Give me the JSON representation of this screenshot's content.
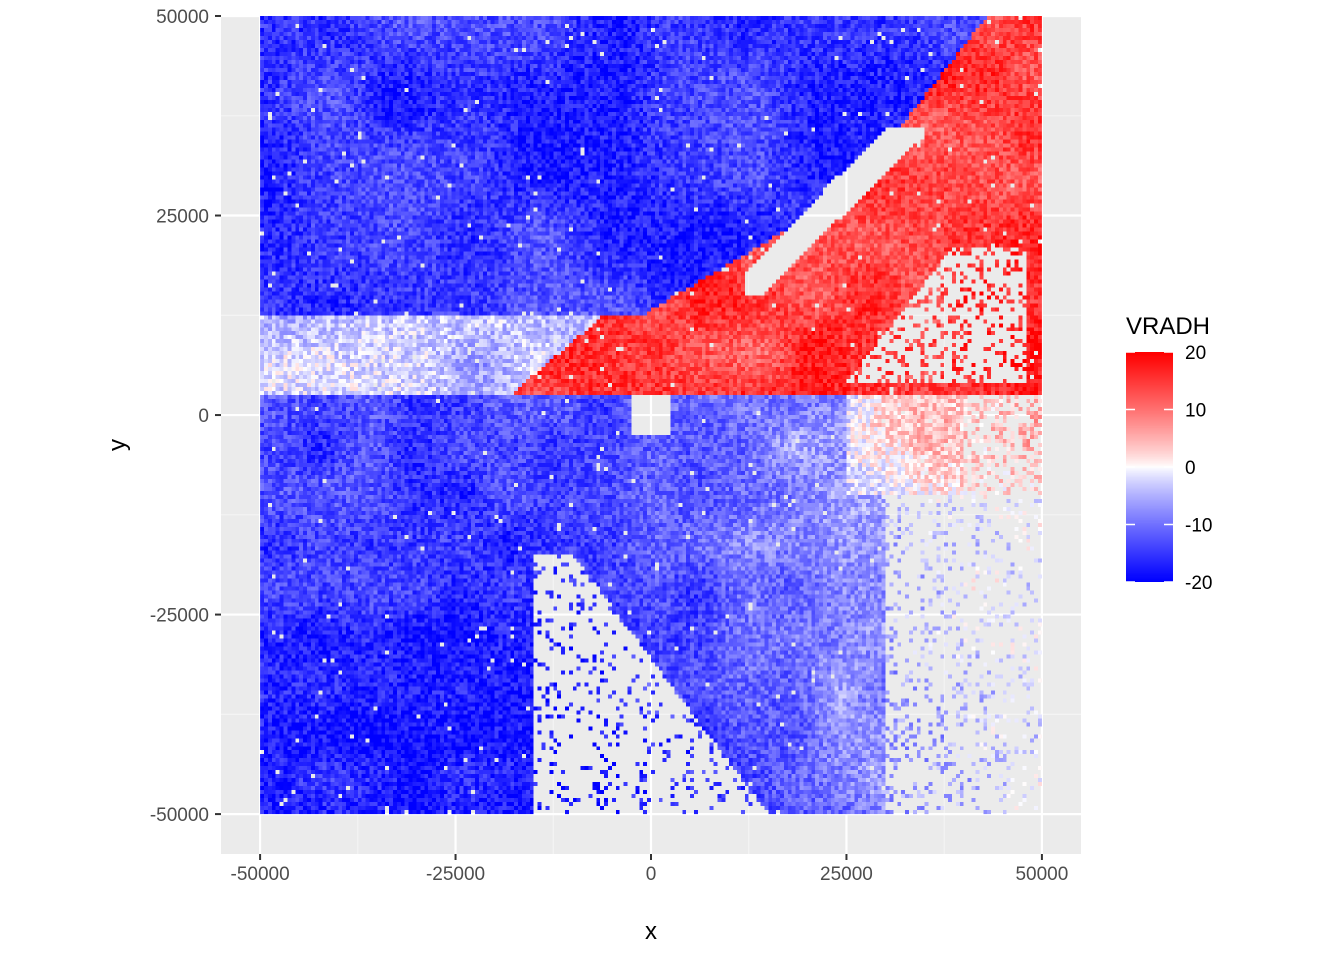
{
  "chart_data": {
    "type": "heatmap",
    "title": "",
    "xlabel": "x",
    "ylabel": "y",
    "xlim": [
      -55000,
      55000
    ],
    "ylim": [
      -55000,
      50000
    ],
    "x_ticks": [
      -50000,
      -25000,
      0,
      25000,
      50000
    ],
    "y_ticks": [
      -50000,
      -25000,
      0,
      25000,
      50000
    ],
    "x_tick_labels": [
      "-50000",
      "-25000",
      "0",
      "25000",
      "50000"
    ],
    "y_tick_labels": [
      "-50000",
      "-25000",
      "0",
      "25000",
      "50000"
    ],
    "grid": true,
    "fill_variable": "VRADH",
    "fill_limits": [
      -20,
      20
    ],
    "fill_scale": {
      "low": "#0000ff",
      "mid": "#ffffff",
      "high": "#ff0000",
      "midpoint": 0
    },
    "legend": {
      "title": "VRADH",
      "placement": "right",
      "breaks": [
        20,
        10,
        0,
        -10,
        -20
      ],
      "labels": [
        "20",
        "10",
        "0",
        "-10",
        "-20"
      ]
    },
    "data_extent": {
      "x": [
        -50000,
        50000
      ],
      "y": [
        -50000,
        50000
      ]
    },
    "field_regions": [
      {
        "region": "north-west",
        "approx_value": -18
      },
      {
        "region": "west, y between 5000 and 25000",
        "approx_value": -6
      },
      {
        "region": "north-east, beyond boundary",
        "approx_value": 15
      },
      {
        "region": "east, y between -10000 and 10000",
        "approx_value": 5
      },
      {
        "region": "centre, y near -5000",
        "approx_value": -2
      },
      {
        "region": "south-west",
        "approx_value": -17
      },
      {
        "region": "south-east, sparse",
        "approx_value": -10
      }
    ]
  },
  "colors": {
    "panel_background": "#ebebeb",
    "grid_major": "#ffffff",
    "grid_minor": "#f5f5f5",
    "axis_text": "#4d4d4d",
    "tick": "#333333"
  }
}
